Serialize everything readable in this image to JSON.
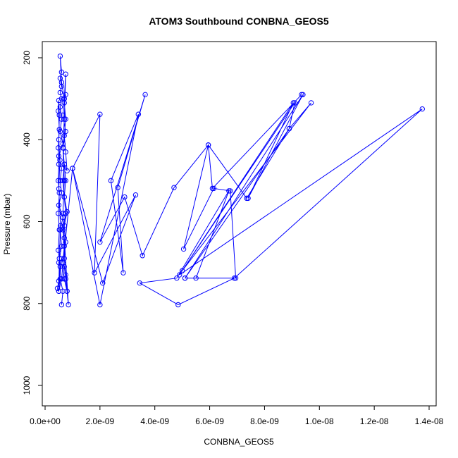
{
  "chart_data": {
    "type": "line",
    "title": "ATOM3 Southbound CONBNA_GEOS5",
    "xlabel": "CONBNA_GEOS5",
    "ylabel": "Pressure (mbar)",
    "xlim": [
      0,
      1.4e-08
    ],
    "ylim": [
      1040,
      180
    ],
    "y_reversed": true,
    "x_ticks": [
      0,
      2e-09,
      4e-09,
      6e-09,
      8e-09,
      1e-08,
      1.2e-08,
      1.4e-08
    ],
    "x_tick_labels": [
      "0.0e+00",
      "2.0e-09",
      "4.0e-09",
      "6.0e-09",
      "8.0e-09",
      "1.0e-08",
      "1.2e-08",
      "1.4e-08"
    ],
    "y_ticks": [
      200,
      400,
      600,
      800,
      1000
    ],
    "y_tick_labels": [
      "200",
      "400",
      "600",
      "800",
      "1000"
    ],
    "marker": "open-circle",
    "grid": false,
    "series_color": "#0000ff",
    "series": [
      {
        "name": "",
        "points": [
          [
            6e-10,
            803
          ],
          [
            6.5e-10,
            770
          ],
          [
            5.5e-10,
            740
          ],
          [
            5e-10,
            700
          ],
          [
            6e-10,
            660
          ],
          [
            5.5e-10,
            620
          ],
          [
            6.5e-10,
            590
          ],
          [
            5e-10,
            560
          ],
          [
            6e-10,
            530
          ],
          [
            5.5e-10,
            500
          ],
          [
            6e-10,
            470
          ],
          [
            5e-10,
            440
          ],
          [
            6.5e-10,
            410
          ],
          [
            5.5e-10,
            380
          ],
          [
            6e-10,
            350
          ],
          [
            5.5e-10,
            320
          ],
          [
            6e-10,
            300
          ],
          [
            5.5e-10,
            285
          ],
          [
            6e-10,
            270
          ],
          [
            5.5e-10,
            250
          ],
          [
            6e-10,
            235
          ],
          [
            5.5e-10,
            196
          ],
          [
            6e-10,
            260
          ],
          [
            7e-10,
            300
          ],
          [
            6.5e-10,
            340
          ],
          [
            7.5e-10,
            380
          ],
          [
            6.5e-10,
            420
          ],
          [
            7e-10,
            460
          ],
          [
            6.5e-10,
            500
          ],
          [
            7e-10,
            540
          ],
          [
            7.5e-10,
            580
          ],
          [
            6.5e-10,
            620
          ],
          [
            7e-10,
            660
          ],
          [
            6.5e-10,
            700
          ],
          [
            7e-10,
            740
          ],
          [
            8e-10,
            770
          ],
          [
            7.5e-10,
            730
          ],
          [
            7e-10,
            690
          ],
          [
            7.5e-10,
            650
          ],
          [
            7e-10,
            610
          ],
          [
            8e-10,
            576
          ],
          [
            7e-10,
            540
          ],
          [
            7.5e-10,
            500
          ],
          [
            7e-10,
            460
          ],
          [
            8e-10,
            476
          ],
          [
            7.5e-10,
            430
          ],
          [
            7e-10,
            390
          ],
          [
            7.5e-10,
            350
          ],
          [
            7e-10,
            310
          ],
          [
            7.5e-10,
            290
          ],
          [
            7e-10,
            300
          ],
          [
            7.5e-10,
            240
          ],
          [
            7e-10,
            350
          ],
          [
            6.5e-10,
            420
          ],
          [
            7e-10,
            500
          ],
          [
            6.5e-10,
            580
          ],
          [
            7e-10,
            640
          ],
          [
            8.5e-10,
            803
          ],
          [
            8e-10,
            770
          ],
          [
            7.5e-10,
            740
          ],
          [
            7e-10,
            710
          ],
          [
            6e-10,
            690
          ],
          [
            5e-10,
            770
          ],
          [
            4.5e-10,
            763
          ],
          [
            5e-10,
            745
          ],
          [
            5.5e-10,
            710
          ],
          [
            4.8e-10,
            670
          ],
          [
            5.2e-10,
            620
          ],
          [
            4.8e-10,
            580
          ],
          [
            5.2e-10,
            530
          ],
          [
            4.8e-10,
            500
          ],
          [
            5e-10,
            460
          ],
          [
            4.8e-10,
            420
          ],
          [
            5.2e-10,
            375
          ],
          [
            4.8e-10,
            330
          ],
          [
            5e-10,
            304
          ],
          [
            5.2e-10,
            340
          ],
          [
            5e-10,
            400
          ],
          [
            5.4e-10,
            450
          ],
          [
            5e-10,
            520
          ],
          [
            5.6e-10,
            610
          ],
          [
            5.2e-10,
            690
          ],
          [
            5e-10,
            770
          ],
          [
            6e-10,
            740
          ],
          [
            1e-09,
            470
          ],
          [
            2e-09,
            338
          ],
          [
            1.8e-09,
            725
          ],
          [
            3.3e-09,
            535
          ],
          [
            2.1e-09,
            750
          ],
          [
            1e-09,
            470
          ],
          [
            2e-09,
            803
          ],
          [
            3.4e-09,
            338
          ],
          [
            2.4e-09,
            500
          ],
          [
            2.85e-09,
            725
          ],
          [
            2.65e-09,
            517
          ],
          [
            3.65e-09,
            290
          ],
          [
            2e-09,
            650
          ],
          [
            2.9e-09,
            540
          ],
          [
            3.55e-09,
            683
          ],
          [
            4.7e-09,
            517
          ],
          [
            5.95e-09,
            413
          ],
          [
            5.05e-09,
            667
          ],
          [
            6.15e-09,
            519
          ],
          [
            6.75e-09,
            525
          ],
          [
            6.95e-09,
            738
          ],
          [
            5.1e-09,
            738
          ],
          [
            5.5e-09,
            738
          ],
          [
            6.7e-09,
            525
          ],
          [
            4.8e-09,
            738
          ],
          [
            3.45e-09,
            750
          ],
          [
            4.85e-09,
            803
          ],
          [
            6.9e-09,
            738
          ],
          [
            1.375e-08,
            325
          ],
          [
            4.9e-09,
            730
          ],
          [
            9.05e-09,
            310
          ],
          [
            7.4e-09,
            543
          ],
          [
            9.4e-09,
            290
          ],
          [
            5.1e-09,
            738
          ],
          [
            8.9e-09,
            373
          ],
          [
            9.7e-09,
            310
          ],
          [
            5e-09,
            720
          ],
          [
            9.1e-09,
            310
          ],
          [
            8.9e-09,
            373
          ],
          [
            7.35e-09,
            543
          ],
          [
            5.95e-09,
            413
          ],
          [
            6.1e-09,
            519
          ],
          [
            9.35e-09,
            290
          ]
        ]
      }
    ]
  }
}
